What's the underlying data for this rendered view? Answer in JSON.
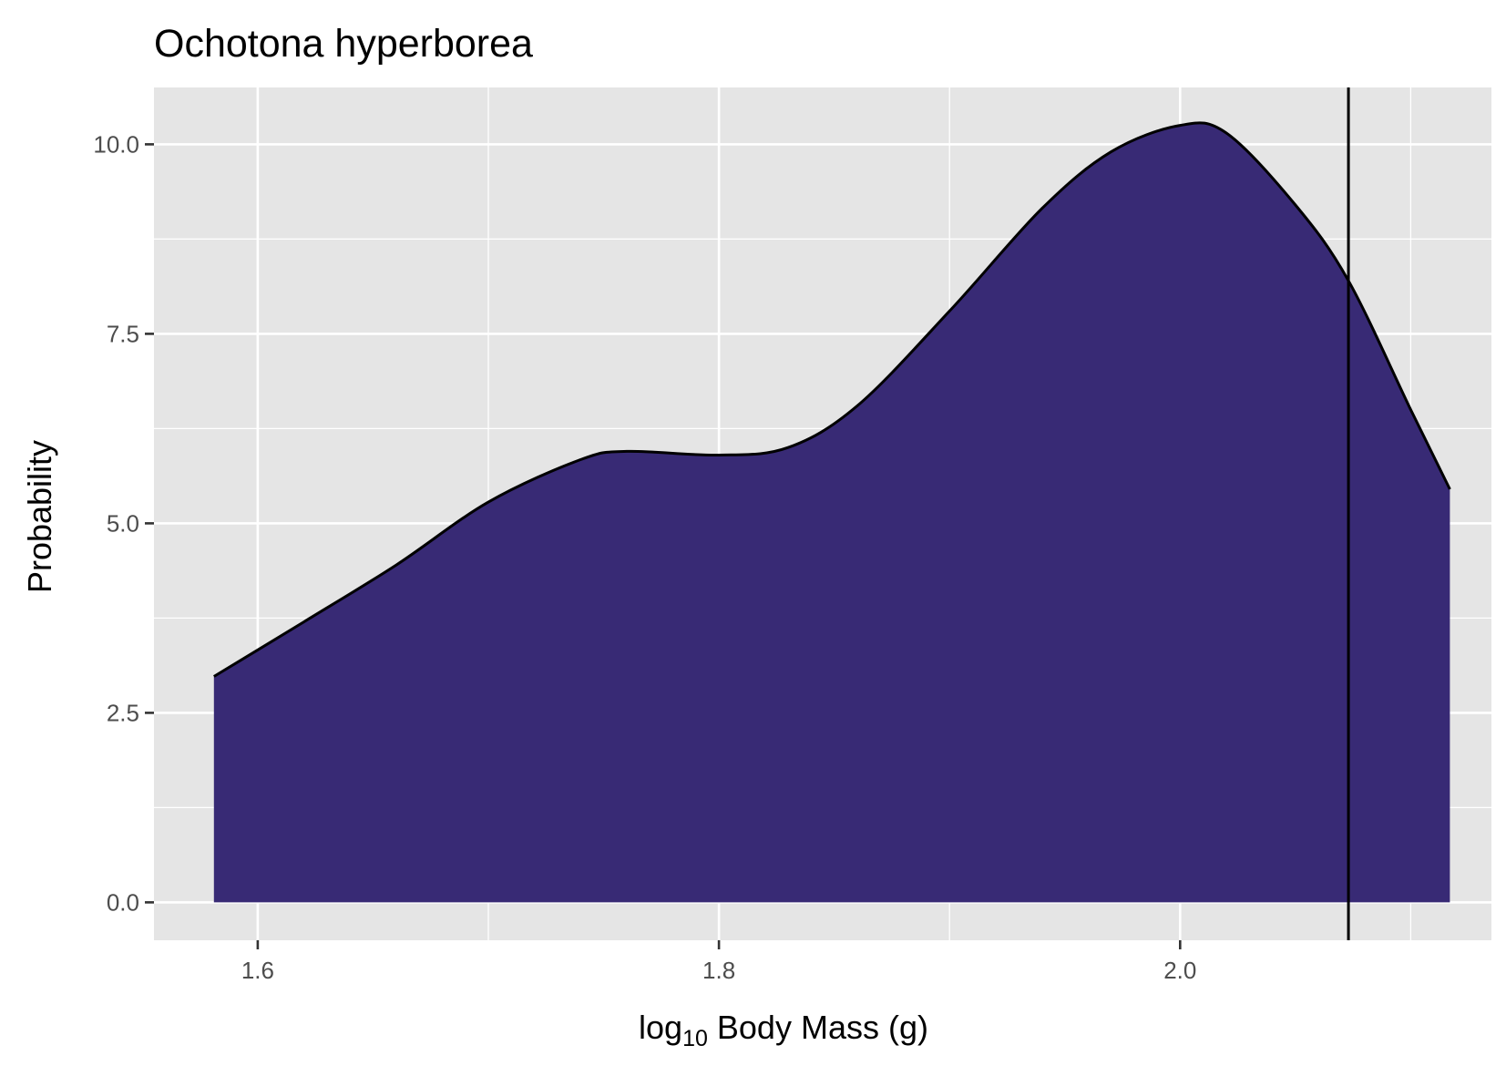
{
  "chart_data": {
    "type": "area",
    "title": "Ochotona hyperborea",
    "xlabel_main": "log",
    "xlabel_sub": "10",
    "xlabel_rest": " Body Mass (g)",
    "ylabel": "Probability",
    "xlim": [
      1.555,
      2.135
    ],
    "ylim": [
      -0.5,
      10.75
    ],
    "x_ticks": [
      1.6,
      1.8,
      2.0
    ],
    "x_tick_labels": [
      "1.6",
      "1.8",
      "2.0"
    ],
    "x_minor_ticks": [
      1.7,
      1.9,
      2.1
    ],
    "y_ticks": [
      0,
      2.5,
      5,
      7.5,
      10
    ],
    "y_tick_labels": [
      "0.0",
      "2.5",
      "5.0",
      "7.5",
      "10.0"
    ],
    "y_minor_ticks": [
      1.25,
      3.75,
      6.25,
      8.75
    ],
    "grid": true,
    "fill_color": "#382A75",
    "line_color": "#000000",
    "panel_color": "#E5E5E5",
    "vline_x": 2.073,
    "x": [
      1.581,
      1.62,
      1.66,
      1.7,
      1.74,
      1.76,
      1.8,
      1.83,
      1.86,
      1.9,
      1.94,
      1.97,
      2.0,
      2.02,
      2.05,
      2.073,
      2.1,
      2.117
    ],
    "y": [
      2.98,
      3.7,
      4.45,
      5.28,
      5.84,
      5.95,
      5.9,
      6.0,
      6.55,
      7.8,
      9.15,
      9.9,
      10.25,
      10.15,
      9.2,
      8.2,
      6.5,
      5.45
    ]
  }
}
